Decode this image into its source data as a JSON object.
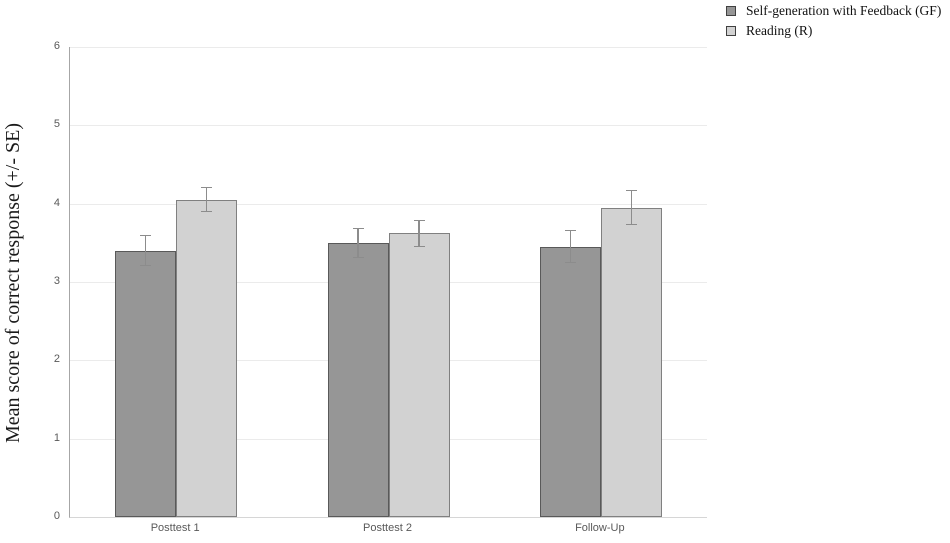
{
  "chart_data": {
    "type": "bar",
    "title": "",
    "ylabel": "Mean score of correct response (+/- SE)",
    "xlabel": "",
    "categories": [
      "Posttest 1",
      "Posttest 2",
      "Follow-Up"
    ],
    "series": [
      {
        "name": "Self-generation with Feedback (GF)",
        "values": [
          3.4,
          3.5,
          3.45
        ],
        "errors": [
          0.2,
          0.19,
          0.21
        ],
        "fill": "#969696",
        "border": "#595959"
      },
      {
        "name": "Reading (R)",
        "values": [
          4.05,
          3.62,
          3.95
        ],
        "errors": [
          0.16,
          0.17,
          0.22
        ],
        "fill": "#d2d2d2",
        "border": "#808080"
      }
    ],
    "ylim": [
      0,
      6
    ],
    "yticks": [
      0,
      1,
      2,
      3,
      4,
      5,
      6
    ],
    "grid": true,
    "legend_position": "top-right",
    "colors": {
      "gridline": "#ebebeb",
      "baseline": "#d6d6d6",
      "y_axis_line": "#a6a6a6",
      "error_bar": "#8c8c8c",
      "tick_text": "#595959"
    }
  }
}
